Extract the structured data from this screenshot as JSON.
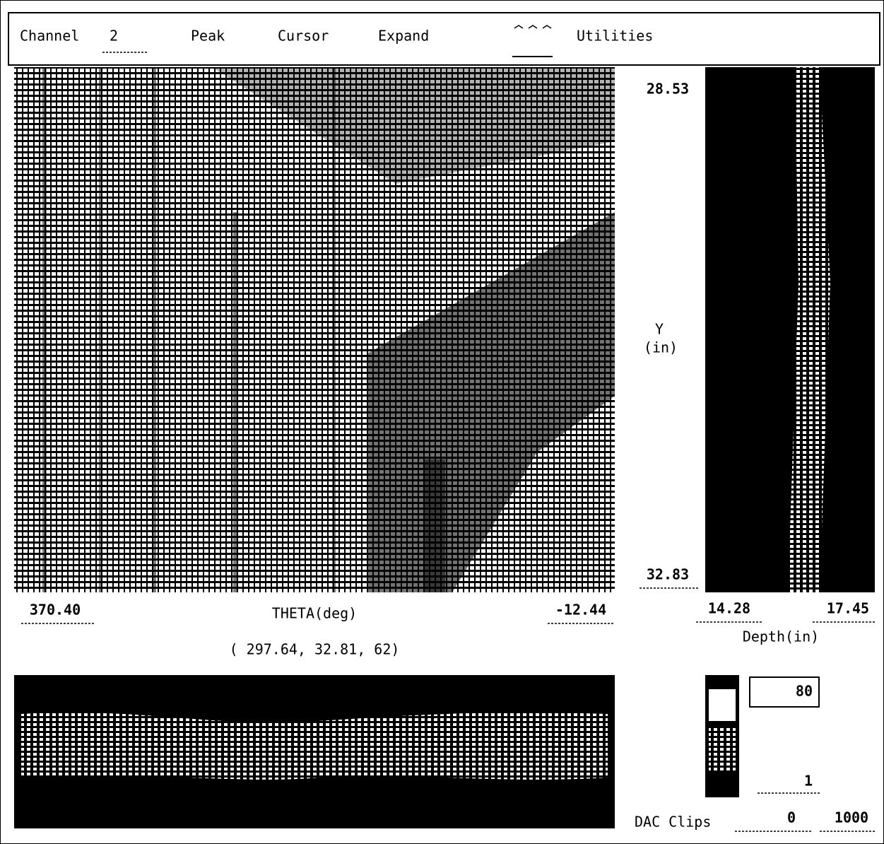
{
  "menu": {
    "channel_label": "Channel",
    "channel_value": "2",
    "peak": "Peak",
    "cursor": "Cursor",
    "expand": "Expand",
    "utilities": "Utilities"
  },
  "main_view": {
    "y_top": "28.53",
    "y_axis_label": "Y",
    "y_axis_unit": "(in)",
    "y_bottom": "32.83",
    "theta_left": "370.40",
    "theta_label": "THETA(deg)",
    "theta_right": "-12.44",
    "depth_left": "14.28",
    "depth_right": "17.45",
    "depth_label": "Depth(in)",
    "cursor_readout": "( 297.64, 32.81, 62)"
  },
  "gain": {
    "upper": "80",
    "lower": "1"
  },
  "dac": {
    "label": "DAC Clips",
    "min": "0",
    "max": "1000"
  }
}
